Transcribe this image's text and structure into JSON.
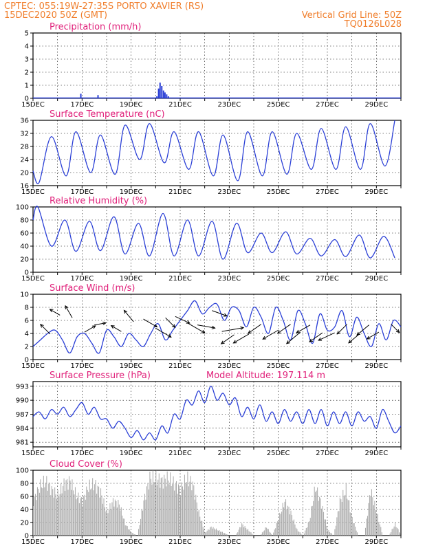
{
  "header": {
    "line1_left": "CPTEC:   055:19W-27:35S   PORTO XAVIER (RS)",
    "line2_left": "15DEC2020 50Z (GMT)",
    "line1_right": "Vertical Grid Line: 50Z",
    "line2_right": "TQ0126L028"
  },
  "colors": {
    "header": "#f07d2a",
    "title": "#e0207a",
    "series": "#2a3fd6",
    "cloud": "#a8a8a8"
  },
  "chart_data": [
    {
      "id": "precip",
      "type": "bar",
      "title": "Precipitation (mm/h)",
      "x_labels": [
        "15DEC",
        "17DEC",
        "19DEC",
        "21DEC",
        "23DEC",
        "25DEC",
        "27DEC",
        "29DEC"
      ],
      "ylim": [
        0,
        5
      ],
      "yticks": [
        0,
        1,
        2,
        3,
        4,
        5
      ],
      "bars": [
        {
          "day": 16.95,
          "value": 0.35
        },
        {
          "day": 17.65,
          "value": 0.25
        },
        {
          "day": 20.05,
          "value": 0.15
        },
        {
          "day": 20.12,
          "value": 0.75
        },
        {
          "day": 20.18,
          "value": 1.2
        },
        {
          "day": 20.25,
          "value": 0.95
        },
        {
          "day": 20.32,
          "value": 0.6
        },
        {
          "day": 20.38,
          "value": 0.45
        },
        {
          "day": 20.45,
          "value": 0.3
        },
        {
          "day": 20.52,
          "value": 0.15
        }
      ],
      "grid": true
    },
    {
      "id": "temp",
      "type": "line",
      "title": "Surface Temperature (nC)",
      "x_labels": [
        "15DEC",
        "17DEC",
        "19DEC",
        "21DEC",
        "23DEC",
        "25DEC",
        "27DEC",
        "29DEC"
      ],
      "ylim": [
        16,
        36
      ],
      "yticks": [
        16,
        20,
        24,
        28,
        32,
        36
      ],
      "min_times": [
        15.25,
        16.35,
        17.35,
        18.35,
        19.35,
        20.35,
        21.35,
        22.35,
        23.35,
        24.35,
        25.35,
        26.35,
        27.35,
        28.35,
        29.35
      ],
      "mins": [
        17,
        19,
        20,
        19.5,
        24,
        23,
        21,
        19,
        17.5,
        19,
        19.5,
        21,
        21,
        21,
        22
      ],
      "max_times": [
        15.75,
        16.75,
        17.75,
        18.75,
        19.75,
        20.75,
        21.75,
        22.75,
        23.75,
        24.75,
        25.75,
        26.75,
        27.75,
        28.75,
        29.75
      ],
      "maxes": [
        31,
        32.5,
        31.5,
        34.5,
        35,
        32.5,
        32.5,
        31.5,
        32.5,
        32.5,
        32,
        33.5,
        34,
        35,
        36
      ],
      "start_value": 20.5,
      "grid": true
    },
    {
      "id": "rh",
      "type": "line",
      "title": "Relative Humidity (%)",
      "x_labels": [
        "15DEC",
        "17DEC",
        "19DEC",
        "21DEC",
        "23DEC",
        "25DEC",
        "27DEC",
        "29DEC"
      ],
      "ylim": [
        0,
        100
      ],
      "yticks": [
        0,
        20,
        40,
        60,
        80,
        100
      ],
      "min_times": [
        15.75,
        16.75,
        17.75,
        18.75,
        19.75,
        20.75,
        21.75,
        22.75,
        23.75,
        24.75,
        25.75,
        26.75,
        27.75,
        28.75,
        29.75
      ],
      "mins": [
        40,
        32,
        33,
        28,
        25,
        25,
        25,
        20,
        30,
        30,
        28,
        25,
        24,
        22,
        22
      ],
      "max_times": [
        15.2,
        16.3,
        17.3,
        18.3,
        19.3,
        20.3,
        21.3,
        22.3,
        23.3,
        24.3,
        25.3,
        26.3,
        27.3,
        28.3,
        29.3
      ],
      "maxes": [
        100,
        80,
        78,
        85,
        75,
        90,
        80,
        78,
        75,
        60,
        62,
        52,
        50,
        57,
        55
      ],
      "start_value": 80,
      "grid": true
    },
    {
      "id": "wind",
      "type": "line",
      "title": "Surface Wind (m/s)",
      "x_labels": [
        "15DEC",
        "17DEC",
        "19DEC",
        "21DEC",
        "23DEC",
        "25DEC",
        "27DEC",
        "29DEC"
      ],
      "ylim": [
        0,
        10
      ],
      "yticks": [
        0,
        2,
        4,
        6,
        8,
        10
      ],
      "x": [
        15,
        15.3,
        15.6,
        15.9,
        16.2,
        16.5,
        16.8,
        17.1,
        17.4,
        17.7,
        18,
        18.3,
        18.6,
        18.9,
        19.2,
        19.5,
        19.8,
        20.1,
        20.4,
        20.7,
        21,
        21.3,
        21.6,
        21.9,
        22.2,
        22.5,
        22.8,
        23.1,
        23.4,
        23.7,
        24,
        24.3,
        24.6,
        24.9,
        25.2,
        25.5,
        25.8,
        26.1,
        26.4,
        26.7,
        27,
        27.3,
        27.6,
        27.9,
        28.2,
        28.5,
        28.8,
        29.1,
        29.4,
        29.7,
        30
      ],
      "values": [
        2,
        3,
        4,
        4.5,
        3,
        1,
        3.5,
        4,
        2.5,
        1,
        4.5,
        3.5,
        2,
        4,
        3,
        2,
        4,
        5.5,
        3,
        4.5,
        6,
        7.5,
        9,
        7,
        8,
        8.5,
        6,
        8,
        7.5,
        5,
        8,
        6.5,
        4,
        8,
        6,
        3,
        7.5,
        5.5,
        2.5,
        7,
        4.5,
        5,
        7.5,
        3.5,
        6.5,
        4,
        2,
        5.5,
        3,
        6,
        5
      ],
      "arrows": [
        {
          "day": 15.7,
          "level": 3.9,
          "dir_deg": 315,
          "speed": 4
        },
        {
          "day": 16.1,
          "level": 6.8,
          "dir_deg": 300,
          "speed": 3
        },
        {
          "day": 16.6,
          "level": 6.4,
          "dir_deg": 330,
          "speed": 4
        },
        {
          "day": 17.1,
          "level": 4.2,
          "dir_deg": 60,
          "speed": 3.5
        },
        {
          "day": 17.5,
          "level": 5.3,
          "dir_deg": 80,
          "speed": 3
        },
        {
          "day": 18.6,
          "level": 4.3,
          "dir_deg": 300,
          "speed": 3
        },
        {
          "day": 19.1,
          "level": 5.8,
          "dir_deg": 320,
          "speed": 4.5
        },
        {
          "day": 19.5,
          "level": 6.2,
          "dir_deg": 120,
          "speed": 5
        },
        {
          "day": 20.0,
          "level": 4.8,
          "dir_deg": 120,
          "speed": 6
        },
        {
          "day": 20.4,
          "level": 6.4,
          "dir_deg": 135,
          "speed": 4
        },
        {
          "day": 20.8,
          "level": 6.6,
          "dir_deg": 115,
          "speed": 5
        },
        {
          "day": 21.3,
          "level": 5.6,
          "dir_deg": 120,
          "speed": 7
        },
        {
          "day": 21.7,
          "level": 5.3,
          "dir_deg": 100,
          "speed": 6
        },
        {
          "day": 22.3,
          "level": 7.5,
          "dir_deg": 110,
          "speed": 5
        },
        {
          "day": 22.7,
          "level": 4.3,
          "dir_deg": 80,
          "speed": 8
        },
        {
          "day": 23.2,
          "level": 3.8,
          "dir_deg": 235,
          "speed": 5
        },
        {
          "day": 23.8,
          "level": 3.9,
          "dir_deg": 240,
          "speed": 6
        },
        {
          "day": 24.3,
          "level": 5.4,
          "dir_deg": 235,
          "speed": 5
        },
        {
          "day": 25.0,
          "level": 4.5,
          "dir_deg": 240,
          "speed": 6
        },
        {
          "day": 25.5,
          "level": 5.4,
          "dir_deg": 235,
          "speed": 5
        },
        {
          "day": 25.9,
          "level": 4.2,
          "dir_deg": 230,
          "speed": 6
        },
        {
          "day": 26.3,
          "level": 5.3,
          "dir_deg": 240,
          "speed": 5
        },
        {
          "day": 26.8,
          "level": 4.1,
          "dir_deg": 235,
          "speed": 5
        },
        {
          "day": 27.3,
          "level": 4.1,
          "dir_deg": 245,
          "speed": 6
        },
        {
          "day": 27.8,
          "level": 5.4,
          "dir_deg": 225,
          "speed": 4
        },
        {
          "day": 28.3,
          "level": 3.9,
          "dir_deg": 230,
          "speed": 4
        },
        {
          "day": 28.7,
          "level": 5.3,
          "dir_deg": 230,
          "speed": 5
        },
        {
          "day": 29.1,
          "level": 4.2,
          "dir_deg": 240,
          "speed": 4
        },
        {
          "day": 29.6,
          "level": 5.4,
          "dir_deg": 135,
          "speed": 3
        }
      ],
      "grid": true
    },
    {
      "id": "pres",
      "type": "line",
      "title": "Surface Pressure (hPa)",
      "subtitle": "Model Altitude: 197.114  m",
      "x_labels": [
        "15DEC",
        "17DEC",
        "19DEC",
        "21DEC",
        "23DEC",
        "25DEC",
        "27DEC",
        "29DEC"
      ],
      "ylim": [
        980,
        994
      ],
      "yticks": [
        981,
        984,
        987,
        990,
        993
      ],
      "x": [
        15,
        15.25,
        15.5,
        15.75,
        16,
        16.25,
        16.5,
        16.75,
        17,
        17.25,
        17.5,
        17.75,
        18,
        18.25,
        18.5,
        18.75,
        19,
        19.25,
        19.5,
        19.75,
        20,
        20.25,
        20.5,
        20.75,
        21,
        21.25,
        21.5,
        21.75,
        22,
        22.25,
        22.5,
        22.75,
        23,
        23.25,
        23.5,
        23.75,
        24,
        24.25,
        24.5,
        24.75,
        25,
        25.25,
        25.5,
        25.75,
        26,
        26.25,
        26.5,
        26.75,
        27,
        27.25,
        27.5,
        27.75,
        28,
        28.25,
        28.5,
        28.75,
        29,
        29.25,
        29.5,
        29.75,
        30
      ],
      "values": [
        986.5,
        987.5,
        986,
        988,
        987,
        988.5,
        986.5,
        988,
        989.5,
        987,
        988.5,
        986,
        986,
        984,
        985.5,
        984,
        982,
        983.5,
        981.5,
        983,
        981.5,
        984.5,
        983,
        987,
        986,
        990,
        989,
        992,
        989.5,
        993,
        990,
        991.5,
        989,
        990.5,
        986.5,
        988.5,
        986,
        989,
        985.5,
        987.5,
        985,
        988,
        985.5,
        987.5,
        985,
        988,
        985,
        988,
        984.5,
        987.5,
        985,
        987.5,
        984.5,
        987.5,
        985.5,
        986.5,
        984,
        988,
        985.5,
        983,
        984.5
      ],
      "grid": true
    },
    {
      "id": "cloud",
      "type": "bar",
      "title": "Cloud Cover (%)",
      "x_labels": [
        "15DEC",
        "17DEC",
        "19DEC",
        "21DEC",
        "23DEC",
        "25DEC",
        "27DEC",
        "29DEC"
      ],
      "ylim": [
        0,
        100
      ],
      "yticks": [
        0,
        20,
        40,
        60,
        80,
        100
      ],
      "x": [
        15,
        15.25,
        15.5,
        15.75,
        16,
        16.25,
        16.5,
        16.75,
        17,
        17.25,
        17.5,
        17.75,
        18,
        18.25,
        18.5,
        18.75,
        19,
        19.25,
        19.5,
        19.75,
        20,
        20.25,
        20.5,
        20.75,
        21,
        21.25,
        21.5,
        21.75,
        22,
        22.25,
        22.5,
        22.75,
        23,
        23.25,
        23.5,
        23.75,
        24,
        24.25,
        24.5,
        24.75,
        25,
        25.25,
        25.5,
        25.75,
        26,
        26.25,
        26.5,
        26.75,
        27,
        27.25,
        27.5,
        27.75,
        28,
        28.25,
        28.5,
        28.75,
        29,
        29.25,
        29.5,
        29.75,
        30
      ],
      "values": [
        60,
        85,
        95,
        80,
        70,
        90,
        95,
        70,
        60,
        85,
        90,
        75,
        40,
        60,
        55,
        20,
        5,
        0,
        60,
        100,
        100,
        95,
        100,
        90,
        80,
        100,
        90,
        40,
        5,
        15,
        10,
        5,
        0,
        0,
        20,
        10,
        0,
        0,
        15,
        0,
        30,
        60,
        40,
        10,
        0,
        25,
        85,
        55,
        10,
        0,
        60,
        80,
        30,
        0,
        0,
        80,
        40,
        0,
        0,
        20,
        0
      ],
      "grid": true
    }
  ]
}
